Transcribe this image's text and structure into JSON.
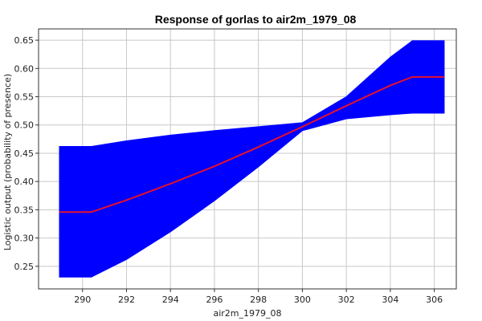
{
  "chart_data": {
    "type": "area",
    "title": "Response of gorlas to air2m_1979_08",
    "xlabel": "air2m_1979_08",
    "ylabel": "Logistic output (probability of presence)",
    "xlim": [
      288.0,
      307.0
    ],
    "ylim": [
      0.21,
      0.67
    ],
    "x_ticks": [
      290,
      292,
      294,
      296,
      298,
      300,
      302,
      304,
      306
    ],
    "y_ticks": [
      0.25,
      0.3,
      0.35,
      0.4,
      0.45,
      0.5,
      0.55,
      0.6,
      0.65
    ],
    "grid": true,
    "legend": "none",
    "x": [
      288.95,
      290.4,
      292,
      294,
      296,
      298,
      300,
      302,
      304,
      305,
      306.45
    ],
    "series": [
      {
        "role": "mean",
        "color": "#e8102a",
        "values": [
          0.346,
          0.346,
          0.367,
          0.396,
          0.427,
          0.461,
          0.497,
          0.534,
          0.57,
          0.585,
          0.585
        ]
      },
      {
        "role": "band-upper",
        "color": "#0000ff",
        "values": [
          0.462,
          0.462,
          0.472,
          0.482,
          0.49,
          0.497,
          0.504,
          0.55,
          0.62,
          0.649,
          0.649
        ]
      },
      {
        "role": "band-lower",
        "color": "#0000ff",
        "values": [
          0.231,
          0.231,
          0.262,
          0.311,
          0.366,
          0.426,
          0.49,
          0.511,
          0.518,
          0.521,
          0.521
        ]
      }
    ]
  }
}
